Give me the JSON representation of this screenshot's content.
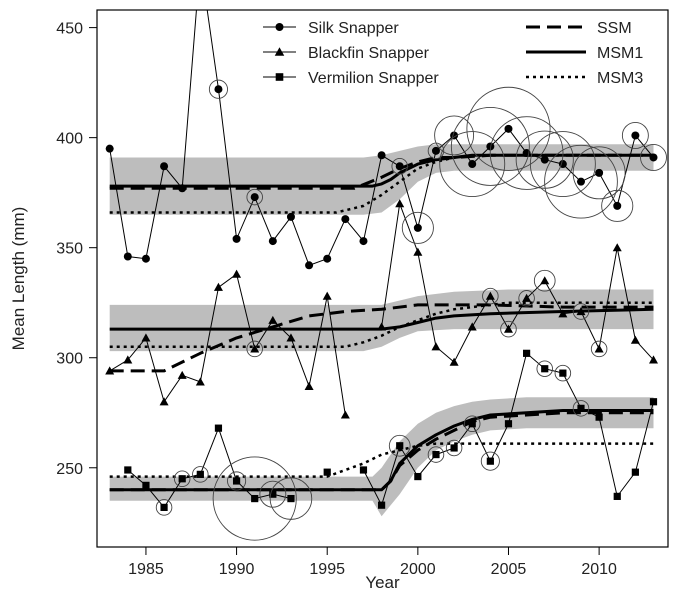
{
  "chart_data": {
    "type": "line",
    "xlabel": "Year",
    "ylabel": "Mean Length (mm)",
    "xlim": [
      1982.3,
      2013.8
    ],
    "ylim": [
      214,
      458
    ],
    "x_ticks": [
      1985,
      1990,
      1995,
      2000,
      2005,
      2010
    ],
    "y_ticks": [
      250,
      300,
      350,
      400,
      450
    ],
    "legend_position": "top-right",
    "legend": {
      "species": [
        "Silk Snapper",
        "Blackfin Snapper",
        "Vermilion Snapper"
      ],
      "models": [
        "SSM",
        "MSM1",
        "MSM3"
      ]
    },
    "series": [
      {
        "name": "Silk Snapper",
        "marker": "circle",
        "x": [
          1983,
          1984,
          1985,
          1986,
          1987,
          1988,
          1989,
          1990,
          1991,
          1992,
          1993,
          1994,
          1995,
          1996,
          1997,
          1998,
          1999,
          2000,
          2001,
          2002,
          2003,
          2004,
          2005,
          2006,
          2007,
          2008,
          2009,
          2010,
          2011,
          2012,
          2013
        ],
        "y": [
          395,
          346,
          345,
          387,
          377,
          480,
          422,
          354,
          373,
          353,
          364,
          342,
          345,
          363,
          353,
          392,
          387,
          359,
          394,
          401,
          388,
          396,
          404,
          393,
          390,
          388,
          380,
          384,
          369,
          401,
          391
        ],
        "bubble_size": [
          0,
          0,
          0,
          0,
          0,
          0,
          0.7,
          0,
          0.6,
          0,
          0,
          0,
          0,
          0,
          0,
          0,
          0.6,
          1.2,
          0.6,
          1.5,
          2.5,
          3.0,
          3.2,
          2.8,
          2.2,
          2.5,
          2.8,
          2.0,
          1.2,
          1.0,
          1.0
        ]
      },
      {
        "name": "Blackfin Snapper",
        "marker": "triangle",
        "x": [
          1983,
          1984,
          1985,
          1986,
          1987,
          1988,
          1989,
          1990,
          1991,
          1992,
          1993,
          1994,
          1995,
          1996,
          1997,
          1998,
          1999,
          2000,
          2001,
          2002,
          2003,
          2004,
          2005,
          2006,
          2007,
          2008,
          2009,
          2010,
          2011,
          2012,
          2013
        ],
        "y": [
          294,
          299,
          309,
          280,
          292,
          289,
          332,
          338,
          304,
          317,
          309,
          287,
          328,
          274,
          null,
          314,
          370,
          348,
          305,
          298,
          314,
          328,
          313,
          327,
          335,
          320,
          321,
          304,
          350,
          308,
          299
        ],
        "bubble_size": [
          0,
          0,
          0,
          0,
          0,
          0,
          0,
          0,
          0.6,
          0,
          0,
          0,
          0,
          0,
          0,
          0,
          0,
          0,
          0,
          0,
          0,
          0.6,
          0.6,
          0.6,
          0.8,
          0,
          0.6,
          0.6,
          0,
          0,
          0
        ]
      },
      {
        "name": "Vermilion Snapper",
        "marker": "square",
        "x": [
          1983,
          1984,
          1985,
          1986,
          1987,
          1988,
          1989,
          1990,
          1991,
          1992,
          1993,
          1994,
          1995,
          1996,
          1997,
          1998,
          1999,
          2000,
          2001,
          2002,
          2003,
          2004,
          2005,
          2006,
          2007,
          2008,
          2009,
          2010,
          2011,
          2012,
          2013
        ],
        "y": [
          null,
          249,
          242,
          232,
          245,
          247,
          268,
          244,
          236,
          238,
          236,
          null,
          248,
          null,
          249,
          233,
          260,
          246,
          256,
          259,
          270,
          253,
          270,
          302,
          295,
          293,
          277,
          273,
          237,
          248,
          280
        ],
        "bubble_size": [
          0,
          0,
          0,
          0.6,
          0.6,
          0.6,
          0,
          0.7,
          3.2,
          1.0,
          1.6,
          0,
          0,
          0,
          0,
          0,
          0.8,
          0,
          0.6,
          0.6,
          0.6,
          0.7,
          0,
          0,
          0.6,
          0.6,
          0.6,
          0,
          0,
          0,
          0
        ]
      }
    ],
    "models": [
      {
        "name": "SSM",
        "style": "dashed",
        "curves": [
          {
            "x": [
              1983,
              1996.5,
              1998,
              1999,
              2000,
              2001,
              2002,
              2004,
              2006,
              2013
            ],
            "y": [
              377,
              377,
              382,
              386,
              389,
              391,
              391,
              392,
              392,
              392
            ]
          },
          {
            "x": [
              1983,
              1986,
              1988,
              1990,
              1992,
              1994,
              1996,
              1998,
              2000,
              2002,
              2004,
              2008,
              2013
            ],
            "y": [
              294,
              294,
              302,
              309,
              314,
              319,
              321,
              322,
              324,
              324,
              324,
              323,
              323
            ]
          },
          {
            "x": [
              1983,
              1998,
              1998.5,
              1999,
              2000,
              2001,
              2002,
              2003,
              2004,
              2006,
              2008,
              2013
            ],
            "y": [
              240,
              240,
              244,
              251,
              258,
              263,
              267,
              271,
              273,
              274,
              275,
              275
            ]
          }
        ]
      },
      {
        "name": "MSM1",
        "style": "solid",
        "curves": [
          {
            "x": [
              1983,
              1997.5,
              1998,
              1998.5,
              1999,
              2000,
              2001,
              2002,
              2003,
              2005,
              2008,
              2013
            ],
            "y": [
              378,
              378,
              379,
              381,
              384,
              388,
              390,
              391,
              392,
              392,
              392,
              392
            ]
          },
          {
            "x": [
              1983,
              1998,
              1999,
              2000,
              2001,
              2002,
              2004,
              2008,
              2013
            ],
            "y": [
              313,
              313,
              314,
              316,
              318,
              319,
              320,
              321,
              322
            ]
          },
          {
            "x": [
              1983,
              1998,
              1998.5,
              1999,
              2000,
              2001,
              2002,
              2003,
              2004,
              2006,
              2008,
              2013
            ],
            "y": [
              240,
              240,
              244,
              252,
              260,
              265,
              269,
              272,
              274,
              275,
              276,
              276
            ]
          }
        ]
      },
      {
        "name": "MSM3",
        "style": "dotted",
        "curves": [
          {
            "x": [
              1983,
              1995.5,
              1997,
              1998,
              1999,
              2000,
              2001,
              2002,
              2003,
              2013
            ],
            "y": [
              366,
              366,
              369,
              374,
              380,
              386,
              389,
              391,
              392,
              392
            ]
          },
          {
            "x": [
              1983,
              1996,
              1997,
              1998,
              1999,
              2000,
              2001,
              2002,
              2003,
              2005,
              2013
            ],
            "y": [
              305,
              305,
              307,
              310,
              314,
              317,
              320,
              322,
              323,
              325,
              325
            ]
          },
          {
            "x": [
              1983,
              1995,
              1996,
              1997,
              1998,
              1999,
              2000,
              2001,
              2003,
              2013
            ],
            "y": [
              246,
              246,
              249,
              252,
              256,
              258,
              260,
              261,
              261,
              261
            ]
          }
        ]
      }
    ],
    "confidence_bands": [
      {
        "x": [
          1983,
          1997,
          1998,
          1999,
          2000,
          2001,
          2002,
          2004,
          2013
        ],
        "lower": [
          365,
          365,
          366,
          372,
          380,
          384,
          385,
          385,
          385
        ],
        "upper": [
          391,
          391,
          392,
          394,
          396,
          397,
          397,
          397,
          397
        ]
      },
      {
        "x": [
          1983,
          1997,
          1998,
          1999,
          2000,
          2002,
          2005,
          2013
        ],
        "lower": [
          303,
          303,
          305,
          309,
          312,
          313,
          313,
          313
        ],
        "upper": [
          324,
          324,
          324,
          326,
          328,
          330,
          331,
          331
        ]
      },
      {
        "x": [
          1983,
          1997.5,
          1998,
          1999,
          2000,
          2001,
          2002,
          2003,
          2004,
          2006,
          2008,
          2013
        ],
        "lower": [
          235,
          235,
          228,
          238,
          250,
          258,
          262,
          265,
          267,
          268,
          268,
          268
        ],
        "upper": [
          246,
          246,
          250,
          262,
          270,
          275,
          278,
          280,
          281,
          282,
          282,
          282
        ]
      }
    ]
  }
}
